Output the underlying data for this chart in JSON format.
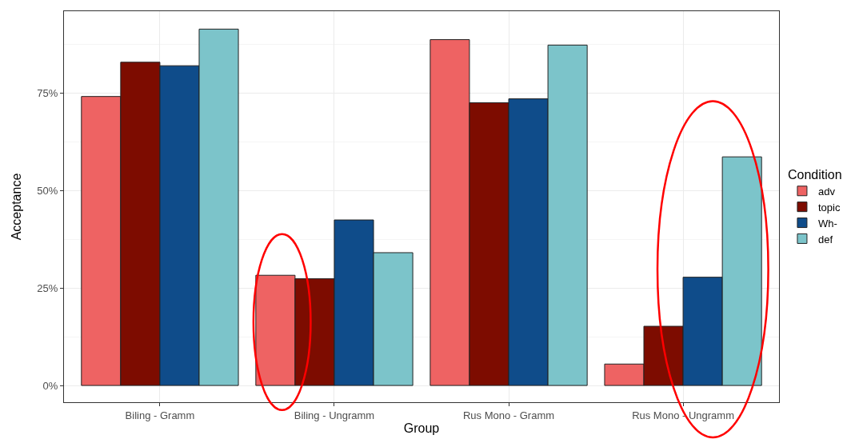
{
  "chart_data": {
    "type": "bar",
    "xlabel": "Group",
    "ylabel": "Acceptance",
    "legend_title": "Condition",
    "legend": "right",
    "grid": true,
    "categories": [
      "Biling - Gramm",
      "Biling - Ungramm",
      "Rus Mono - Gramm",
      "Rus Mono - Ungramm"
    ],
    "series": [
      {
        "name": "adv",
        "color": "#ee6363",
        "values": [
          74.2,
          28.3,
          88.8,
          5.5
        ]
      },
      {
        "name": "topic",
        "color": "#7d0c00",
        "values": [
          83.0,
          27.4,
          72.6,
          15.2
        ]
      },
      {
        "name": "Wh-",
        "color": "#0f4c8a",
        "values": [
          82.1,
          42.5,
          73.6,
          27.8
        ]
      },
      {
        "name": "def",
        "color": "#7cc4ca",
        "values": [
          91.5,
          34.1,
          87.4,
          58.7
        ]
      }
    ],
    "ylim": [
      -4.3,
      96.1
    ],
    "yticks": [
      {
        "value": 0,
        "label": "0%"
      },
      {
        "value": 25,
        "label": "25%"
      },
      {
        "value": 50,
        "label": "50%"
      },
      {
        "value": 75,
        "label": "75%"
      }
    ]
  }
}
